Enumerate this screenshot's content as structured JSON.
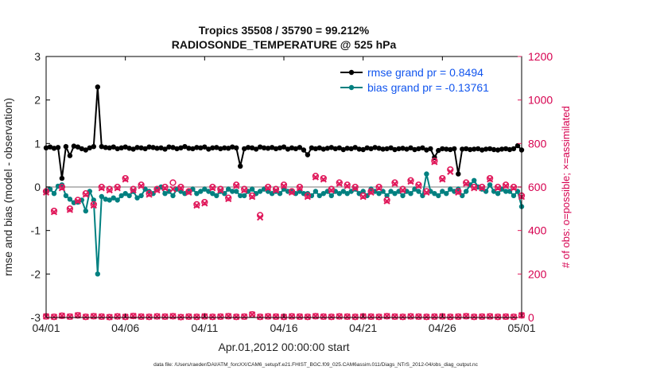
{
  "chart_data": {
    "type": "line",
    "title": "Tropics 35508 / 35790 = 99.212%",
    "subtitle": "RADIOSONDE_TEMPERATURE @ 525 hPa",
    "xlabel": "Apr.01,2012 00:00:00 start",
    "ylabel": "rmse and bias (model - observation)",
    "y2label": "# of obs: o=possible; ×=assimilated",
    "footnote": "data file: /Users/raeder/DAI/ATM_forcXX/CAM6_setup/f.e21.FHIST_BGC.f09_025.CAM6assim.011/Diags_NTrS_2012-04/obs_diag_output.nc",
    "xlim": [
      1,
      31
    ],
    "ylim": [
      -3,
      3
    ],
    "y2lim": [
      0,
      1200
    ],
    "xticks": [
      1,
      6,
      11,
      16,
      21,
      26,
      31
    ],
    "xticklabels": [
      "04/01",
      "04/06",
      "04/11",
      "04/16",
      "04/21",
      "04/26",
      "05/01"
    ],
    "yticks": [
      -3,
      -2,
      -1,
      0,
      1,
      2,
      3
    ],
    "y2ticks": [
      0,
      200,
      400,
      600,
      800,
      1000,
      1200
    ],
    "colors": {
      "rmse": "#000000",
      "bias": "#008080",
      "obs": "#e0195b",
      "zero": "#bbbbbb",
      "legend": "#1155ee"
    },
    "series": [
      {
        "name": "rmse grand pr = 0.8494",
        "x": [
          1.0,
          1.25,
          1.5,
          1.75,
          2.0,
          2.25,
          2.5,
          2.75,
          3.0,
          3.25,
          3.5,
          3.75,
          4.0,
          4.25,
          4.5,
          4.75,
          5.0,
          5.25,
          5.5,
          5.75,
          6.0,
          6.25,
          6.5,
          6.75,
          7.0,
          7.25,
          7.5,
          7.75,
          8.0,
          8.25,
          8.5,
          8.75,
          9.0,
          9.25,
          9.5,
          9.75,
          10.0,
          10.25,
          10.5,
          10.75,
          11.0,
          11.25,
          11.5,
          11.75,
          12.0,
          12.25,
          12.5,
          12.75,
          13.0,
          13.25,
          13.5,
          13.75,
          14.0,
          14.25,
          14.5,
          14.75,
          15.0,
          15.25,
          15.5,
          15.75,
          16.0,
          16.25,
          16.5,
          16.75,
          17.0,
          17.25,
          17.5,
          17.75,
          18.0,
          18.25,
          18.5,
          18.75,
          19.0,
          19.25,
          19.5,
          19.75,
          20.0,
          20.25,
          20.5,
          20.75,
          21.0,
          21.25,
          21.5,
          21.75,
          22.0,
          22.25,
          22.5,
          22.75,
          23.0,
          23.25,
          23.5,
          23.75,
          24.0,
          24.25,
          24.5,
          24.75,
          25.0,
          25.25,
          25.5,
          25.75,
          26.0,
          26.25,
          26.5,
          26.75,
          27.0,
          27.25,
          27.5,
          27.75,
          28.0,
          28.25,
          28.5,
          28.75,
          29.0,
          29.25,
          29.5,
          29.75,
          30.0,
          30.25,
          30.5,
          30.75,
          31.0
        ],
        "values": [
          0.9,
          0.92,
          0.89,
          0.91,
          0.2,
          0.93,
          0.72,
          0.94,
          0.92,
          0.88,
          0.85,
          0.9,
          0.93,
          2.3,
          0.93,
          0.91,
          0.9,
          0.92,
          0.88,
          0.9,
          0.92,
          0.89,
          0.87,
          0.91,
          0.9,
          0.88,
          0.92,
          0.91,
          0.89,
          0.9,
          0.87,
          0.92,
          0.91,
          0.88,
          0.9,
          0.93,
          0.89,
          0.88,
          0.91,
          0.9,
          0.92,
          0.87,
          0.9,
          0.91,
          0.88,
          0.9,
          0.89,
          0.92,
          0.9,
          0.48,
          0.88,
          0.91,
          0.9,
          0.87,
          0.92,
          0.9,
          0.89,
          0.91,
          0.88,
          0.9,
          0.92,
          0.87,
          0.9,
          0.88,
          0.91,
          0.85,
          0.74,
          0.9,
          0.88,
          0.9,
          0.87,
          0.89,
          0.91,
          0.88,
          0.9,
          0.86,
          0.89,
          0.88,
          0.91,
          0.87,
          0.86,
          0.9,
          0.88,
          0.91,
          0.89,
          0.87,
          0.88,
          0.9,
          0.86,
          0.88,
          0.89,
          0.87,
          0.9,
          0.86,
          0.88,
          0.9,
          0.85,
          0.88,
          0.68,
          0.84,
          0.88,
          0.87,
          0.86,
          0.88,
          0.3,
          0.87,
          0.88,
          0.86,
          0.87,
          0.88,
          0.85,
          0.87,
          0.88,
          0.86,
          0.85,
          0.87,
          0.88,
          0.86,
          0.88,
          0.95,
          0.85
        ]
      },
      {
        "name": "bias grand pr = -0.13761",
        "x": [
          1.0,
          1.25,
          1.5,
          1.75,
          2.0,
          2.25,
          2.5,
          2.75,
          3.0,
          3.25,
          3.5,
          3.75,
          4.0,
          4.25,
          4.5,
          4.75,
          5.0,
          5.25,
          5.5,
          5.75,
          6.0,
          6.25,
          6.5,
          6.75,
          7.0,
          7.25,
          7.5,
          7.75,
          8.0,
          8.25,
          8.5,
          8.75,
          9.0,
          9.25,
          9.5,
          9.75,
          10.0,
          10.25,
          10.5,
          10.75,
          11.0,
          11.25,
          11.5,
          11.75,
          12.0,
          12.25,
          12.5,
          12.75,
          13.0,
          13.25,
          13.5,
          13.75,
          14.0,
          14.25,
          14.5,
          14.75,
          15.0,
          15.25,
          15.5,
          15.75,
          16.0,
          16.25,
          16.5,
          16.75,
          17.0,
          17.25,
          17.5,
          17.75,
          18.0,
          18.25,
          18.5,
          18.75,
          19.0,
          19.25,
          19.5,
          19.75,
          20.0,
          20.25,
          20.5,
          20.75,
          21.0,
          21.25,
          21.5,
          21.75,
          22.0,
          22.25,
          22.5,
          22.75,
          23.0,
          23.25,
          23.5,
          23.75,
          24.0,
          24.25,
          24.5,
          24.75,
          25.0,
          25.25,
          25.5,
          25.75,
          26.0,
          26.25,
          26.5,
          26.75,
          27.0,
          27.25,
          27.5,
          27.75,
          28.0,
          28.25,
          28.5,
          28.75,
          29.0,
          29.25,
          29.5,
          29.75,
          30.0,
          30.25,
          30.5,
          30.75,
          31.0
        ],
        "values": [
          -0.1,
          -0.05,
          -0.15,
          0.02,
          0.05,
          -0.2,
          -0.28,
          -0.36,
          -0.35,
          -0.3,
          -0.55,
          -0.1,
          -0.3,
          -2.0,
          -0.22,
          -0.28,
          -0.3,
          -0.25,
          -0.3,
          -0.2,
          -0.15,
          -0.2,
          -0.1,
          -0.25,
          -0.2,
          -0.05,
          -0.1,
          -0.15,
          -0.05,
          0.0,
          -0.15,
          -0.1,
          -0.2,
          -0.05,
          -0.1,
          -0.15,
          -0.1,
          -0.05,
          -0.15,
          -0.1,
          -0.05,
          -0.1,
          -0.15,
          -0.2,
          -0.1,
          -0.15,
          -0.05,
          -0.1,
          -0.1,
          -0.2,
          -0.2,
          -0.1,
          -0.05,
          -0.15,
          -0.1,
          -0.05,
          -0.1,
          -0.15,
          -0.1,
          -0.15,
          -0.05,
          -0.1,
          -0.1,
          -0.15,
          -0.1,
          -0.15,
          -0.15,
          -0.2,
          -0.1,
          -0.2,
          -0.15,
          -0.1,
          -0.2,
          -0.1,
          -0.15,
          -0.1,
          -0.15,
          -0.1,
          -0.05,
          -0.15,
          -0.1,
          -0.2,
          -0.05,
          -0.1,
          -0.15,
          -0.1,
          -0.2,
          -0.1,
          -0.15,
          -0.1,
          -0.2,
          -0.1,
          -0.15,
          -0.05,
          -0.1,
          -0.2,
          0.3,
          -0.1,
          -0.15,
          -0.2,
          -0.1,
          -0.15,
          -0.05,
          -0.1,
          -0.05,
          -0.2,
          -0.1,
          0.05,
          0.15,
          0.0,
          -0.05,
          -0.1,
          0.05,
          -0.1,
          -0.15,
          -0.05,
          -0.1,
          -0.1,
          -0.2,
          -0.1,
          -0.45
        ]
      }
    ],
    "obs_possible": {
      "x": [
        1.0,
        1.5,
        2.0,
        2.5,
        3.0,
        3.5,
        4.0,
        4.5,
        5.0,
        5.5,
        6.0,
        6.5,
        7.0,
        7.5,
        8.0,
        8.5,
        9.0,
        9.5,
        10.0,
        10.5,
        11.0,
        11.5,
        12.0,
        12.5,
        13.0,
        13.5,
        14.0,
        14.5,
        15.0,
        15.5,
        16.0,
        16.5,
        17.0,
        17.5,
        18.0,
        18.5,
        19.0,
        19.5,
        20.0,
        20.5,
        21.0,
        21.5,
        22.0,
        22.5,
        23.0,
        23.5,
        24.0,
        24.5,
        25.0,
        25.5,
        26.0,
        26.5,
        27.0,
        27.5,
        28.0,
        28.5,
        29.0,
        29.5,
        30.0,
        30.5,
        31.0
      ],
      "values": [
        580,
        490,
        600,
        500,
        540,
        570,
        520,
        600,
        590,
        600,
        640,
        590,
        610,
        570,
        590,
        600,
        620,
        600,
        580,
        520,
        530,
        600,
        590,
        550,
        610,
        590,
        560,
        470,
        600,
        590,
        610,
        580,
        600,
        560,
        650,
        640,
        590,
        620,
        610,
        600,
        560,
        580,
        600,
        540,
        620,
        590,
        630,
        610,
        580,
        720,
        640,
        680,
        580,
        620,
        600,
        600,
        640,
        600,
        610,
        600,
        560
      ]
    },
    "obs_assimilated": {
      "x": [
        1.0,
        1.5,
        2.0,
        2.5,
        3.0,
        3.5,
        4.0,
        4.5,
        5.0,
        5.5,
        6.0,
        6.5,
        7.0,
        7.5,
        8.0,
        8.5,
        9.0,
        9.5,
        10.0,
        10.5,
        11.0,
        11.5,
        12.0,
        12.5,
        13.0,
        13.5,
        14.0,
        14.5,
        15.0,
        15.5,
        16.0,
        16.5,
        17.0,
        17.5,
        18.0,
        18.5,
        19.0,
        19.5,
        20.0,
        20.5,
        21.0,
        21.5,
        22.0,
        22.5,
        23.0,
        23.5,
        24.0,
        24.5,
        25.0,
        25.5,
        26.0,
        26.5,
        27.0,
        27.5,
        28.0,
        28.5,
        29.0,
        29.5,
        30.0,
        30.5,
        31.0
      ],
      "values": [
        575,
        485,
        595,
        495,
        535,
        565,
        515,
        595,
        585,
        595,
        635,
        585,
        605,
        565,
        585,
        595,
        590,
        595,
        575,
        515,
        525,
        595,
        585,
        545,
        605,
        585,
        555,
        460,
        595,
        585,
        605,
        575,
        595,
        555,
        645,
        635,
        585,
        615,
        605,
        595,
        555,
        575,
        595,
        535,
        615,
        585,
        625,
        605,
        575,
        715,
        635,
        670,
        575,
        615,
        595,
        595,
        635,
        595,
        605,
        595,
        555
      ]
    },
    "obs_bottom": {
      "x": [
        1.0,
        1.5,
        2.0,
        2.5,
        3.0,
        3.5,
        4.0,
        4.5,
        5.0,
        5.5,
        6.0,
        6.5,
        7.0,
        7.5,
        8.0,
        8.5,
        9.0,
        9.5,
        10.0,
        10.5,
        11.0,
        11.5,
        12.0,
        12.5,
        13.0,
        13.5,
        14.0,
        14.5,
        15.0,
        15.5,
        16.0,
        16.5,
        17.0,
        17.5,
        18.0,
        18.5,
        19.0,
        19.5,
        20.0,
        20.5,
        21.0,
        21.5,
        22.0,
        22.5,
        23.0,
        23.5,
        24.0,
        24.5,
        25.0,
        25.5,
        26.0,
        26.5,
        27.0,
        27.5,
        28.0,
        28.5,
        29.0,
        29.5,
        30.0,
        30.5,
        31.0
      ],
      "values": [
        5,
        3,
        8,
        4,
        10,
        3,
        6,
        4,
        2,
        5,
        3,
        7,
        4,
        3,
        5,
        4,
        6,
        2,
        4,
        3,
        5,
        3,
        4,
        6,
        3,
        4,
        14,
        3,
        5,
        4,
        3,
        5,
        4,
        3,
        6,
        4,
        3,
        5,
        4,
        3,
        5,
        4,
        3,
        6,
        4,
        3,
        5,
        4,
        3,
        4,
        5,
        3,
        4,
        6,
        3,
        4,
        5,
        3,
        4,
        3,
        10
      ]
    },
    "legend": [
      "rmse grand pr = 0.8494",
      "bias grand pr = -0.13761"
    ],
    "legend_position": "top-right"
  }
}
